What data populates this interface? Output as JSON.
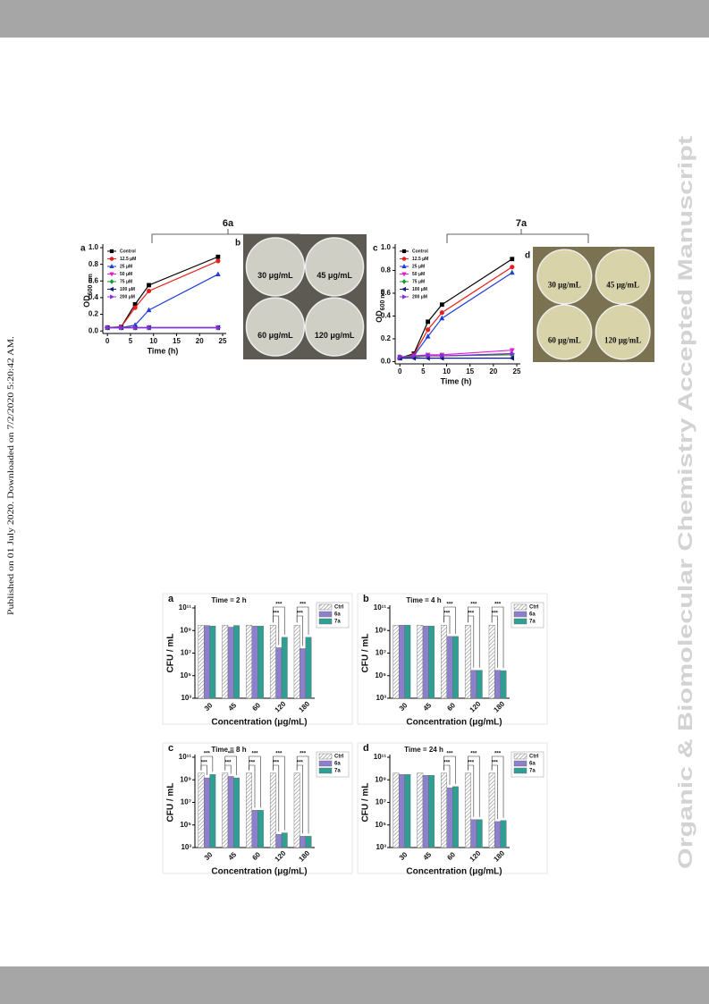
{
  "margin_note": "Published on 01 July 2020. Downloaded on 7/2/2020 5:20:42 AM.",
  "watermark": "Organic & Biomolecular Chemistry Accepted Manuscript",
  "figure1": {
    "group_labels": [
      "6a",
      "7a"
    ],
    "photo_panels": [
      {
        "label": "b",
        "plates": [
          "30 μg/mL",
          "45 μg/mL",
          "60 μg/mL",
          "120 μg/mL"
        ]
      },
      {
        "label": "d",
        "plates": [
          "30 μg/mL",
          "45 μg/mL",
          "60 μg/mL",
          "120 μg/mL"
        ]
      }
    ]
  },
  "chart_data": [
    {
      "type": "line",
      "panel_label": "a",
      "x": [
        0,
        3,
        6,
        9,
        24
      ],
      "xlim": [
        -1,
        25
      ],
      "xticks": [
        0,
        5,
        10,
        15,
        20,
        25
      ],
      "ylim": [
        -0.03,
        1.0
      ],
      "yticks": [
        {
          "value": 0,
          "label": "0.0"
        },
        {
          "value": 0.2,
          "label": "0.2"
        },
        {
          "value": 0.4,
          "label": "0.4"
        },
        {
          "value": 0.6,
          "label": "0.6"
        },
        {
          "value": 0.8,
          "label": "0.8"
        },
        {
          "value": 1.0,
          "label": "1.0"
        }
      ],
      "xlabel": "Time (h)",
      "ylabel": "OD",
      "ylabel_sub": "600 nm",
      "series": [
        {
          "name": "Control",
          "color": "#000000",
          "marker": "square",
          "values": [
            0.04,
            0.05,
            0.32,
            0.55,
            0.89
          ]
        },
        {
          "name": "12.5 μM",
          "color": "#e8201c",
          "marker": "circle",
          "values": [
            0.04,
            0.05,
            0.28,
            0.48,
            0.84
          ]
        },
        {
          "name": "25 μM",
          "color": "#1f3fd6",
          "marker": "tri-up",
          "values": [
            0.04,
            0.04,
            0.07,
            0.25,
            0.68
          ]
        },
        {
          "name": "50 μM",
          "color": "#e020d0",
          "marker": "tri-down",
          "values": [
            0.04,
            0.04,
            0.04,
            0.04,
            0.04
          ]
        },
        {
          "name": "75 μM",
          "color": "#1a9a2a",
          "marker": "diamond",
          "values": [
            0.04,
            0.04,
            0.04,
            0.04,
            0.04
          ]
        },
        {
          "name": "100 μM",
          "color": "#101a80",
          "marker": "tri-left",
          "values": [
            0.04,
            0.04,
            0.04,
            0.04,
            0.04
          ]
        },
        {
          "name": "200 μM",
          "color": "#8a2be2",
          "marker": "tri-right",
          "values": [
            0.04,
            0.04,
            0.04,
            0.04,
            0.04
          ]
        }
      ]
    },
    {
      "type": "line",
      "panel_label": "c",
      "x": [
        0,
        3,
        6,
        9,
        24
      ],
      "xlim": [
        -1,
        25
      ],
      "xticks": [
        0,
        5,
        10,
        15,
        20,
        25
      ],
      "ylim": [
        -0.02,
        1.0
      ],
      "yticks": [
        {
          "value": 0,
          "label": "0.0"
        },
        {
          "value": 0.2,
          "label": "0.2"
        },
        {
          "value": 0.4,
          "label": "0.4"
        },
        {
          "value": 0.6,
          "label": "0.6"
        },
        {
          "value": 0.8,
          "label": "0.8"
        },
        {
          "value": 1.0,
          "label": "1.0"
        }
      ],
      "xlabel": "Time (h)",
      "ylabel": "OD",
      "ylabel_sub": "600 nm",
      "series": [
        {
          "name": "Control",
          "color": "#000000",
          "marker": "square",
          "values": [
            0.03,
            0.07,
            0.35,
            0.5,
            0.9
          ]
        },
        {
          "name": "12.5 μM",
          "color": "#e8201c",
          "marker": "circle",
          "values": [
            0.03,
            0.06,
            0.28,
            0.43,
            0.83
          ]
        },
        {
          "name": "25 μM",
          "color": "#1f3fd6",
          "marker": "tri-up",
          "values": [
            0.03,
            0.05,
            0.22,
            0.38,
            0.78
          ]
        },
        {
          "name": "50 μM",
          "color": "#e020d0",
          "marker": "tri-down",
          "values": [
            0.04,
            0.05,
            0.06,
            0.06,
            0.1
          ]
        },
        {
          "name": "75 μM",
          "color": "#1a9a2a",
          "marker": "diamond",
          "values": [
            0.04,
            0.04,
            0.05,
            0.05,
            0.06
          ]
        },
        {
          "name": "100 μM",
          "color": "#101a80",
          "marker": "tri-left",
          "values": [
            0.03,
            0.03,
            0.03,
            0.03,
            0.03
          ]
        },
        {
          "name": "200 μM",
          "color": "#8a2be2",
          "marker": "tri-right",
          "values": [
            0.04,
            0.05,
            0.05,
            0.05,
            0.07
          ]
        }
      ]
    },
    {
      "type": "bar",
      "panel_label": "a",
      "title": "Time = 2 h",
      "log_scale": true,
      "categories": [
        "30",
        "45",
        "60",
        "120",
        "180"
      ],
      "ylim": [
        1000,
        100000000000
      ],
      "yticks": [
        {
          "value": 1000,
          "label": "10³"
        },
        {
          "value": 100000,
          "label": "10⁵"
        },
        {
          "value": 10000000,
          "label": "10⁷"
        },
        {
          "value": 1000000000,
          "label": "10⁹"
        },
        {
          "value": 100000000000,
          "label": "10¹¹"
        }
      ],
      "xlabel": "Concentration (μg/mL)",
      "ylabel": "CFU / mL",
      "series": [
        {
          "name": "Ctrl",
          "color": "#ffffff",
          "pattern": "hatch",
          "values": [
            3000000000.0,
            3000000000.0,
            3000000000.0,
            3000000000.0,
            3000000000.0
          ]
        },
        {
          "name": "6a",
          "color": "#8c80cc",
          "values": [
            2800000000.0,
            2000000000.0,
            2500000000.0,
            30000000.0,
            25000000.0
          ]
        },
        {
          "name": "7a",
          "color": "#2f9f94",
          "values": [
            2500000000.0,
            2800000000.0,
            2500000000.0,
            250000000.0,
            250000000.0
          ]
        }
      ],
      "significance": [
        null,
        null,
        null,
        "***",
        "***"
      ]
    },
    {
      "type": "bar",
      "panel_label": "b",
      "title": "Time = 4 h",
      "log_scale": true,
      "categories": [
        "30",
        "45",
        "60",
        "120",
        "180"
      ],
      "ylim": [
        1000,
        100000000000
      ],
      "yticks": [
        {
          "value": 1000,
          "label": "10³"
        },
        {
          "value": 100000,
          "label": "10⁵"
        },
        {
          "value": 10000000,
          "label": "10⁷"
        },
        {
          "value": 1000000000,
          "label": "10⁹"
        },
        {
          "value": 100000000000,
          "label": "10¹¹"
        }
      ],
      "xlabel": "Concentration (μg/mL)",
      "ylabel": "CFU / mL",
      "series": [
        {
          "name": "Ctrl",
          "color": "#ffffff",
          "pattern": "hatch",
          "values": [
            3000000000.0,
            3000000000.0,
            3000000000.0,
            3000000000.0,
            3000000000.0
          ]
        },
        {
          "name": "6a",
          "color": "#8c80cc",
          "values": [
            3000000000.0,
            2500000000.0,
            300000000.0,
            300000.0,
            300000.0
          ]
        },
        {
          "name": "7a",
          "color": "#2f9f94",
          "values": [
            3000000000.0,
            2500000000.0,
            300000000.0,
            300000.0,
            280000.0
          ]
        }
      ],
      "significance": [
        null,
        null,
        "***",
        "***",
        "***"
      ]
    },
    {
      "type": "bar",
      "panel_label": "c",
      "title": "Time = 8 h",
      "log_scale": true,
      "categories": [
        "30",
        "45",
        "60",
        "120",
        "180"
      ],
      "ylim": [
        1000,
        100000000000
      ],
      "yticks": [
        {
          "value": 1000,
          "label": "10³"
        },
        {
          "value": 100000,
          "label": "10⁵"
        },
        {
          "value": 10000000,
          "label": "10⁷"
        },
        {
          "value": 1000000000,
          "label": "10⁹"
        },
        {
          "value": 100000000000,
          "label": "10¹¹"
        }
      ],
      "xlabel": "Concentration (μg/mL)",
      "ylabel": "CFU / mL",
      "series": [
        {
          "name": "Ctrl",
          "color": "#ffffff",
          "pattern": "hatch",
          "values": [
            4000000000.0,
            4000000000.0,
            4000000000.0,
            4000000000.0,
            4000000000.0
          ]
        },
        {
          "name": "6a",
          "color": "#8c80cc",
          "values": [
            1500000000.0,
            2000000000.0,
            2000000.0,
            15000.0,
            10000.0
          ]
        },
        {
          "name": "7a",
          "color": "#2f9f94",
          "values": [
            3000000000.0,
            1500000000.0,
            2000000.0,
            20000.0,
            10000.0
          ]
        }
      ],
      "significance": [
        "***",
        "***",
        "***",
        "***",
        "***"
      ]
    },
    {
      "type": "bar",
      "panel_label": "d",
      "title": "Time = 24 h",
      "log_scale": true,
      "categories": [
        "30",
        "45",
        "60",
        "120",
        "180"
      ],
      "ylim": [
        1000,
        100000000000
      ],
      "yticks": [
        {
          "value": 1000,
          "label": "10³"
        },
        {
          "value": 100000,
          "label": "10⁵"
        },
        {
          "value": 10000000,
          "label": "10⁷"
        },
        {
          "value": 1000000000,
          "label": "10⁹"
        },
        {
          "value": 100000000000,
          "label": "10¹¹"
        }
      ],
      "xlabel": "Concentration (μg/mL)",
      "ylabel": "CFU / mL",
      "series": [
        {
          "name": "Ctrl",
          "color": "#ffffff",
          "pattern": "hatch",
          "values": [
            4000000000.0,
            4000000000.0,
            4000000000.0,
            4000000000.0,
            4000000000.0
          ]
        },
        {
          "name": "6a",
          "color": "#8c80cc",
          "values": [
            3000000000.0,
            2500000000.0,
            200000000.0,
            300000.0,
            200000.0
          ]
        },
        {
          "name": "7a",
          "color": "#2f9f94",
          "values": [
            3000000000.0,
            2500000000.0,
            250000000.0,
            300000.0,
            250000.0
          ]
        }
      ],
      "significance": [
        null,
        null,
        "***",
        "***",
        "***"
      ]
    }
  ]
}
